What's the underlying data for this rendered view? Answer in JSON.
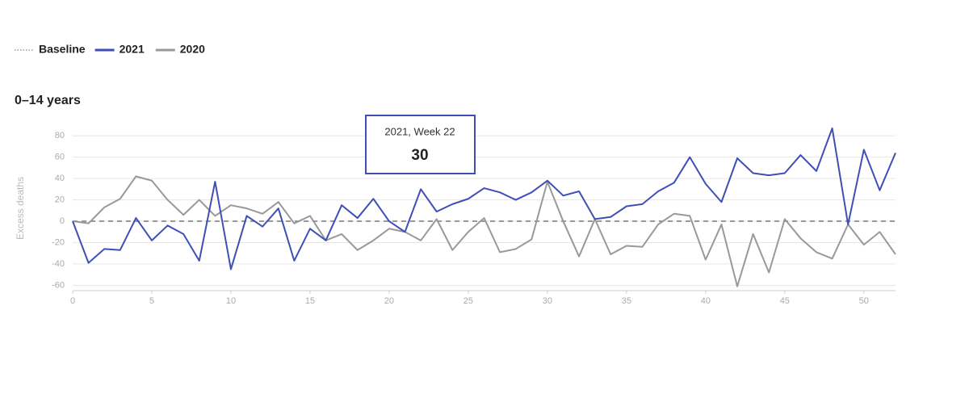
{
  "chart_data": {
    "type": "line",
    "title": "0–14 years",
    "y_label": "Excess deaths",
    "x": [
      0,
      1,
      2,
      3,
      4,
      5,
      6,
      7,
      8,
      9,
      10,
      11,
      12,
      13,
      14,
      15,
      16,
      17,
      18,
      19,
      20,
      21,
      22,
      23,
      24,
      25,
      26,
      27,
      28,
      29,
      30,
      31,
      32,
      33,
      34,
      35,
      36,
      37,
      38,
      39,
      40,
      41,
      42,
      43,
      44,
      45,
      46,
      47,
      48,
      49,
      50,
      51,
      52
    ],
    "baseline": {
      "name": "Baseline",
      "value": 0,
      "color": "#999999"
    },
    "series": [
      {
        "name": "2021",
        "color": "#3f4fb5",
        "values": [
          0,
          -39,
          -26,
          -27,
          3,
          -18,
          -4,
          -12,
          -37,
          37,
          -45,
          5,
          -5,
          12,
          -37,
          -7,
          -18,
          15,
          3,
          21,
          0,
          -10,
          30,
          9,
          16,
          21,
          31,
          27,
          20,
          27,
          38,
          24,
          28,
          2,
          4,
          14,
          16,
          28,
          36,
          60,
          35,
          18,
          59,
          45,
          43,
          45,
          62,
          47,
          87,
          -3,
          67,
          29,
          64
        ]
      },
      {
        "name": "2020",
        "color": "#999999",
        "values": [
          0,
          -2,
          13,
          21,
          42,
          38,
          20,
          6,
          20,
          5,
          15,
          12,
          7,
          18,
          -2,
          5,
          -18,
          -12,
          -27,
          -18,
          -7,
          -10,
          -18,
          2,
          -27,
          -10,
          3,
          -29,
          -26,
          -17,
          37,
          0,
          -33,
          2,
          -31,
          -23,
          -24,
          -3,
          7,
          5,
          -36,
          -3,
          -61,
          -12,
          -48,
          2,
          -16,
          -29,
          -35,
          -3,
          -22,
          -10,
          -31
        ]
      }
    ],
    "xlim": [
      0,
      52
    ],
    "xticks": [
      0,
      5,
      10,
      15,
      20,
      25,
      30,
      35,
      40,
      45,
      50
    ],
    "ylim": [
      -65,
      90
    ],
    "yticks": [
      -60,
      -40,
      -20,
      0,
      20,
      40,
      60,
      80
    ],
    "grid": true,
    "tooltip": {
      "title": "2021, Week 22",
      "value": 30
    }
  }
}
